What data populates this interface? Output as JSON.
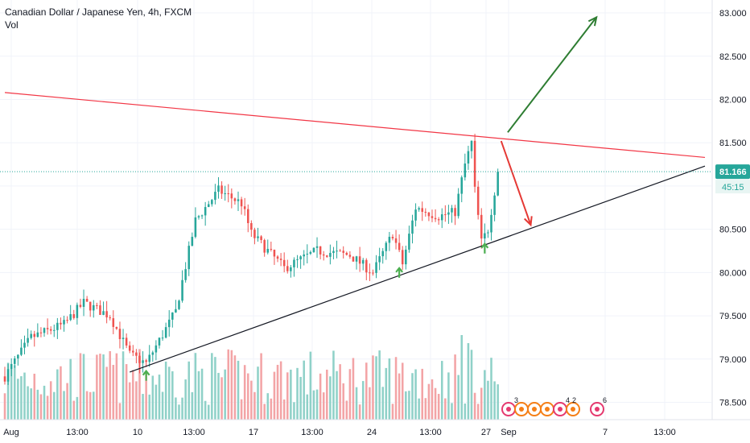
{
  "header": {
    "title": "Canadian Dollar / Japanese Yen, 4h, FXCM",
    "indicator": "Vol"
  },
  "colors": {
    "up": "#26a69a",
    "down": "#ef5350",
    "vol_up": "#8fd1c8",
    "vol_down": "#f3a4a6",
    "grid": "#f0f3fa",
    "resistance": "#f23645",
    "support": "#131722",
    "arrow_up": "#2e7d32",
    "arrow_down": "#e53935",
    "marker_arrow": "#4caf50",
    "price_badge": "#26a69a",
    "axis_text": "#131722"
  },
  "chart_data": {
    "type": "candlestick",
    "symbol": "Canadian Dollar / Japanese Yen",
    "timeframe": "4h",
    "source": "FXCM",
    "volume_label": "Vol",
    "y_axis": {
      "ticks": [
        "83.000",
        "82.500",
        "82.000",
        "81.500",
        "81.000",
        "80.500",
        "80.000",
        "79.500",
        "79.000",
        "78.500"
      ],
      "range": [
        78.3,
        83.1
      ]
    },
    "x_axis": {
      "ticks": [
        "Aug",
        "13:00",
        "10",
        "13:00",
        "17",
        "13:00",
        "24",
        "13:00",
        "27",
        "Sep",
        "7",
        "13:00"
      ],
      "last_bar_index": 150,
      "projected_bars": 63
    },
    "current_price": "81.166",
    "countdown": "45:15",
    "anchors": [
      {
        "i": 0,
        "p": 78.8
      },
      {
        "i": 8,
        "p": 79.25
      },
      {
        "i": 18,
        "p": 79.4
      },
      {
        "i": 24,
        "p": 79.65
      },
      {
        "i": 32,
        "p": 79.5
      },
      {
        "i": 38,
        "p": 79.05
      },
      {
        "i": 43,
        "p": 78.95
      },
      {
        "i": 52,
        "p": 79.55
      },
      {
        "i": 58,
        "p": 80.6
      },
      {
        "i": 65,
        "p": 80.95
      },
      {
        "i": 72,
        "p": 80.8
      },
      {
        "i": 75,
        "p": 80.45
      },
      {
        "i": 85,
        "p": 80.05
      },
      {
        "i": 95,
        "p": 80.25
      },
      {
        "i": 105,
        "p": 80.2
      },
      {
        "i": 112,
        "p": 80.0
      },
      {
        "i": 118,
        "p": 80.45
      },
      {
        "i": 121,
        "p": 80.1
      },
      {
        "i": 125,
        "p": 80.75
      },
      {
        "i": 132,
        "p": 80.65
      },
      {
        "i": 137,
        "p": 80.7
      },
      {
        "i": 140,
        "p": 81.25
      },
      {
        "i": 142,
        "p": 81.5
      },
      {
        "i": 143,
        "p": 80.95
      },
      {
        "i": 145,
        "p": 80.35
      },
      {
        "i": 147,
        "p": 80.5
      },
      {
        "i": 150,
        "p": 81.16
      }
    ],
    "resistance_line": {
      "from": {
        "i": 0,
        "p": 82.08
      },
      "to": {
        "i": 213,
        "p": 81.33
      }
    },
    "support_line": {
      "from": {
        "i": 38,
        "p": 78.85
      },
      "to": {
        "i": 213,
        "p": 81.23
      }
    },
    "projection_up": {
      "from": {
        "i": 153,
        "p": 81.62
      },
      "to": {
        "i": 180,
        "p": 82.95
      }
    },
    "projection_down": {
      "from": {
        "i": 151,
        "p": 81.52
      },
      "to": {
        "i": 160,
        "p": 80.55
      }
    },
    "touch_markers": [
      {
        "i": 43,
        "p": 78.88
      },
      {
        "i": 120,
        "p": 80.07
      },
      {
        "i": 146,
        "p": 80.35
      }
    ],
    "event_icons": [
      "3",
      "4",
      "2",
      "6"
    ]
  }
}
